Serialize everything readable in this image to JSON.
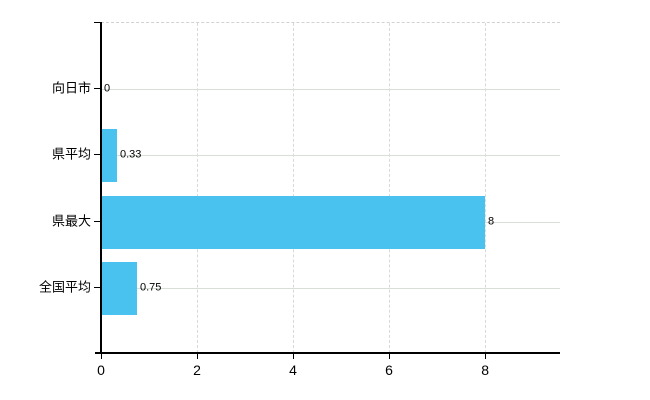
{
  "chart_data": {
    "type": "bar",
    "orientation": "horizontal",
    "title": "",
    "xlabel": "",
    "ylabel": "",
    "categories": [
      "向日市",
      "県平均",
      "県最大",
      "全国平均"
    ],
    "values": [
      0,
      0.33,
      8,
      0.75
    ],
    "value_labels": [
      "0",
      "0.33",
      "8",
      "0.75"
    ],
    "x_ticks": [
      0,
      2,
      4,
      6,
      8
    ],
    "x_tick_labels": [
      "0",
      "2",
      "4",
      "6",
      "8"
    ],
    "xlim": [
      0,
      9.56
    ],
    "grid": true,
    "legend": false
  },
  "colors": {
    "bar": "#49C2F0",
    "axis": "#000000",
    "horizontal_grid": "#D8DED8",
    "vertical_grid": "#D4DCD4",
    "top_border": "#D2D2D2",
    "background": "#FFFFFF",
    "text": "#000000"
  }
}
